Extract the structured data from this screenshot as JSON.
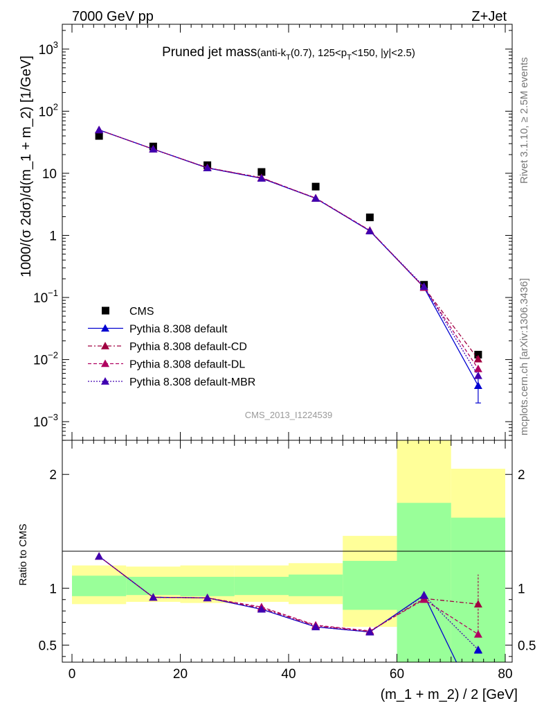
{
  "header": {
    "left": "7000 GeV pp",
    "right": "Z+Jet"
  },
  "side_labels": {
    "rivet": "Rivet 3.1.10, ≥ 2.5M events",
    "mcplots": "mcplots.cern.ch [arXiv:1306.3436]"
  },
  "analysis_id": "CMS_2013_I1224539",
  "colors": {
    "CMS": "#000000",
    "default": "#0000d0",
    "CD": "#a00040",
    "DL": "#b00060",
    "MBR": "#4000b0",
    "band_yellow": "#ffff99",
    "band_green": "#99ff99"
  },
  "chart_data": [
    {
      "type": "line",
      "panel": "main",
      "title_main": "Pruned jet mass",
      "title_sub_a": "(anti-k",
      "title_sub_a_idx": "T",
      "title_sub_b": "(0.7), 125<p",
      "title_sub_b_idx": "T",
      "title_sub_c": "<150, |y|<2.5)",
      "ylabel": "1000/(σ 2dσ)/d(m_1 + m_2) [1/GeV]",
      "yscale": "log",
      "ylim": [
        0.0005,
        2500
      ],
      "xlim": [
        0,
        80
      ],
      "y_tick_labels": [
        {
          "base": "10",
          "exp": "3",
          "value": 1000
        },
        {
          "base": "10",
          "exp": "2",
          "value": 100
        },
        {
          "base": "10",
          "exp": "",
          "value": 10
        },
        {
          "base": "1",
          "exp": "",
          "value": 1
        },
        {
          "base": "10",
          "exp": "−1",
          "value": 0.1
        },
        {
          "base": "10",
          "exp": "−2",
          "value": 0.01
        },
        {
          "base": "10",
          "exp": "−3",
          "value": 0.001
        }
      ],
      "x": [
        5,
        15,
        25,
        35,
        45,
        55,
        65,
        75
      ],
      "x_bin_edges": [
        0,
        10,
        20,
        30,
        40,
        50,
        60,
        70,
        80
      ],
      "legend_position": "bottom-left",
      "series": [
        {
          "name": "CMS",
          "style": "data",
          "values": [
            40,
            27,
            13.5,
            10.5,
            6.1,
            1.95,
            0.16,
            0.012
          ]
        },
        {
          "name": "Pythia 8.308 default",
          "style": "solid",
          "values": [
            50,
            24.5,
            12.2,
            8.3,
            3.95,
            1.18,
            0.145,
            0.0038
          ],
          "last_err": [
            0.002,
            0.0058
          ]
        },
        {
          "name": "Pythia 8.308 default-CD",
          "style": "dashdot",
          "values": [
            50,
            24.5,
            12.3,
            8.5,
            3.95,
            1.2,
            0.145,
            0.0102
          ]
        },
        {
          "name": "Pythia 8.308 default-DL",
          "style": "dashed",
          "values": [
            50,
            24.5,
            12.3,
            8.4,
            4.0,
            1.2,
            0.146,
            0.0071
          ]
        },
        {
          "name": "Pythia 8.308 default-MBR",
          "style": "dotted",
          "values": [
            50,
            24.5,
            12.2,
            8.3,
            3.95,
            1.18,
            0.15,
            0.0055
          ]
        }
      ]
    },
    {
      "type": "line",
      "panel": "ratio",
      "ylabel": "Ratio to CMS",
      "xlabel": "(m_1 + m_2) / 2 [GeV]",
      "ylim": [
        0.35,
        2.3
      ],
      "xlim": [
        0,
        80
      ],
      "y_ticks": [
        0.5,
        1,
        2
      ],
      "y_tick_labels": [
        "0.5",
        "1",
        "2"
      ],
      "x_ticks": [
        0,
        20,
        40,
        60,
        80
      ],
      "x_tick_labels": [
        "0",
        "20",
        "40",
        "60",
        "80"
      ],
      "x": [
        5,
        15,
        25,
        35,
        45,
        55,
        65,
        75
      ],
      "x_bin_edges": [
        0,
        10,
        20,
        30,
        40,
        50,
        60,
        70,
        80
      ],
      "band_yellow": [
        [
          0.86,
          1.2
        ],
        [
          0.88,
          1.19
        ],
        [
          0.87,
          1.2
        ],
        [
          0.88,
          1.2
        ],
        [
          0.86,
          1.22
        ],
        [
          0.66,
          1.46
        ],
        [
          0.35,
          2.3
        ],
        [
          0.35,
          2.05
        ]
      ],
      "band_green": [
        [
          0.93,
          1.11
        ],
        [
          0.94,
          1.1
        ],
        [
          0.93,
          1.1
        ],
        [
          0.94,
          1.1
        ],
        [
          0.93,
          1.12
        ],
        [
          0.81,
          1.24
        ],
        [
          0.35,
          1.75
        ],
        [
          0.35,
          1.62
        ]
      ],
      "series": [
        {
          "name": "Pythia 8.308 default",
          "style": "solid",
          "values": [
            1.28,
            0.92,
            0.915,
            0.815,
            0.66,
            0.615,
            0.94,
            0.45
          ]
        },
        {
          "name": "Pythia 8.308 default-CD",
          "style": "dashdot",
          "values": [
            1.28,
            0.92,
            0.915,
            0.825,
            0.67,
            0.62,
            0.91,
            0.86
          ],
          "last_err": [
            0.62,
            1.12
          ]
        },
        {
          "name": "Pythia 8.308 default-DL",
          "style": "dashed",
          "values": [
            1.28,
            0.92,
            0.915,
            0.835,
            0.675,
            0.625,
            0.9,
            0.595
          ]
        },
        {
          "name": "Pythia 8.308 default-MBR",
          "style": "dotted",
          "values": [
            1.28,
            0.92,
            0.915,
            0.815,
            0.66,
            0.615,
            0.935,
            0.46
          ]
        }
      ]
    }
  ]
}
